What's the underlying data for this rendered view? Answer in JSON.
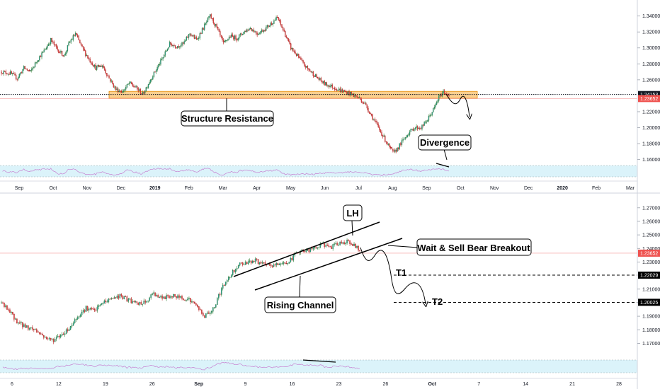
{
  "chart_data": [
    {
      "type": "candlestick",
      "title": "",
      "period": "daily",
      "x_ticks": [
        {
          "label": "Sep",
          "bold": false
        },
        {
          "label": "Oct",
          "bold": false
        },
        {
          "label": "Nov",
          "bold": false
        },
        {
          "label": "Dec",
          "bold": false
        },
        {
          "label": "2019",
          "bold": true
        },
        {
          "label": "Feb",
          "bold": false
        },
        {
          "label": "Mar",
          "bold": false
        },
        {
          "label": "Apr",
          "bold": false
        },
        {
          "label": "May",
          "bold": false
        },
        {
          "label": "Jun",
          "bold": false
        },
        {
          "label": "Jul",
          "bold": false
        },
        {
          "label": "Aug",
          "bold": false
        },
        {
          "label": "Sep",
          "bold": false
        },
        {
          "label": "Oct",
          "bold": false
        },
        {
          "label": "Nov",
          "bold": false
        },
        {
          "label": "Dec",
          "bold": false
        },
        {
          "label": "2020",
          "bold": true
        },
        {
          "label": "Feb",
          "bold": false
        },
        {
          "label": "Mar",
          "bold": false
        }
      ],
      "y_ticks": [
        "1.34000",
        "1.32000",
        "1.30000",
        "1.28000",
        "1.26000",
        "1.22000",
        "1.20000",
        "1.18000",
        "1.16000"
      ],
      "ylim": [
        1.157,
        1.345
      ],
      "price_key_points": [
        [
          0,
          1.27
        ],
        [
          8,
          1.268
        ],
        [
          14,
          1.262
        ],
        [
          20,
          1.275
        ],
        [
          26,
          1.27
        ],
        [
          32,
          1.285
        ],
        [
          38,
          1.296
        ],
        [
          44,
          1.31
        ],
        [
          50,
          1.298
        ],
        [
          56,
          1.29
        ],
        [
          60,
          1.305
        ],
        [
          66,
          1.318
        ],
        [
          72,
          1.3
        ],
        [
          78,
          1.286
        ],
        [
          84,
          1.275
        ],
        [
          90,
          1.278
        ],
        [
          96,
          1.262
        ],
        [
          102,
          1.248
        ],
        [
          108,
          1.245
        ],
        [
          114,
          1.256
        ],
        [
          120,
          1.25
        ],
        [
          126,
          1.242
        ],
        [
          132,
          1.258
        ],
        [
          138,
          1.273
        ],
        [
          144,
          1.288
        ],
        [
          150,
          1.305
        ],
        [
          156,
          1.302
        ],
        [
          162,
          1.305
        ],
        [
          168,
          1.318
        ],
        [
          174,
          1.31
        ],
        [
          180,
          1.325
        ],
        [
          186,
          1.34
        ],
        [
          192,
          1.325
        ],
        [
          198,
          1.305
        ],
        [
          204,
          1.315
        ],
        [
          210,
          1.312
        ],
        [
          216,
          1.32
        ],
        [
          222,
          1.325
        ],
        [
          228,
          1.318
        ],
        [
          234,
          1.323
        ],
        [
          240,
          1.33
        ],
        [
          246,
          1.338
        ],
        [
          252,
          1.32
        ],
        [
          258,
          1.3
        ],
        [
          264,
          1.29
        ],
        [
          270,
          1.278
        ],
        [
          276,
          1.27
        ],
        [
          282,
          1.262
        ],
        [
          288,
          1.255
        ],
        [
          294,
          1.252
        ],
        [
          300,
          1.248
        ],
        [
          306,
          1.245
        ],
        [
          312,
          1.242
        ],
        [
          318,
          1.238
        ],
        [
          324,
          1.23
        ],
        [
          330,
          1.215
        ],
        [
          336,
          1.2
        ],
        [
          340,
          1.19
        ],
        [
          346,
          1.175
        ],
        [
          350,
          1.168
        ],
        [
          356,
          1.18
        ],
        [
          362,
          1.192
        ],
        [
          368,
          1.2
        ],
        [
          374,
          1.2
        ],
        [
          380,
          1.21
        ],
        [
          386,
          1.225
        ],
        [
          390,
          1.238
        ],
        [
          394,
          1.245
        ],
        [
          399,
          1.2405
        ]
      ],
      "current_price": 1.23652,
      "levels": [
        {
          "label": "1.24153",
          "value": 1.24153,
          "color": "#131722",
          "style": "dotted"
        }
      ],
      "current_tag": "1.23652",
      "zone": {
        "low": 1.2368,
        "high": 1.2455,
        "color": "#f7a733"
      },
      "annotations": {
        "structure": "Structure Resistance",
        "divergence": "Divergence"
      },
      "rsi": {
        "upper": 70,
        "lower": 30
      }
    },
    {
      "type": "candlestick",
      "title": "",
      "period": "4h",
      "x_ticks": [
        {
          "label": "6",
          "bold": false
        },
        {
          "label": "12",
          "bold": false
        },
        {
          "label": "19",
          "bold": false
        },
        {
          "label": "26",
          "bold": false
        },
        {
          "label": "Sep",
          "bold": true
        },
        {
          "label": "9",
          "bold": false
        },
        {
          "label": "16",
          "bold": false
        },
        {
          "label": "23",
          "bold": false
        },
        {
          "label": "26",
          "bold": false
        },
        {
          "label": "Oct",
          "bold": true
        },
        {
          "label": "7",
          "bold": false
        },
        {
          "label": "14",
          "bold": false
        },
        {
          "label": "21",
          "bold": false
        },
        {
          "label": "28",
          "bold": false
        }
      ],
      "y_ticks": [
        "1.27000",
        "1.26000",
        "1.25000",
        "1.24000",
        "1.23000",
        "1.21000",
        "1.20000",
        "1.19000",
        "1.18000",
        "1.17000"
      ],
      "ylim": [
        1.165,
        1.2725
      ],
      "price_key_points": [
        [
          0,
          1.2
        ],
        [
          6,
          1.193
        ],
        [
          12,
          1.185
        ],
        [
          18,
          1.182
        ],
        [
          24,
          1.18
        ],
        [
          30,
          1.175
        ],
        [
          36,
          1.172
        ],
        [
          42,
          1.176
        ],
        [
          48,
          1.181
        ],
        [
          54,
          1.19
        ],
        [
          60,
          1.196
        ],
        [
          66,
          1.194
        ],
        [
          72,
          1.2
        ],
        [
          78,
          1.203
        ],
        [
          84,
          1.205
        ],
        [
          90,
          1.202
        ],
        [
          96,
          1.199
        ],
        [
          102,
          1.2
        ],
        [
          108,
          1.207
        ],
        [
          114,
          1.203
        ],
        [
          120,
          1.205
        ],
        [
          126,
          1.204
        ],
        [
          132,
          1.203
        ],
        [
          138,
          1.198
        ],
        [
          144,
          1.19
        ],
        [
          150,
          1.195
        ],
        [
          156,
          1.21
        ],
        [
          162,
          1.22
        ],
        [
          168,
          1.228
        ],
        [
          174,
          1.23
        ],
        [
          180,
          1.231
        ],
        [
          186,
          1.228
        ],
        [
          192,
          1.227
        ],
        [
          198,
          1.229
        ],
        [
          204,
          1.23
        ],
        [
          210,
          1.238
        ],
        [
          216,
          1.238
        ],
        [
          222,
          1.24
        ],
        [
          228,
          1.243
        ],
        [
          234,
          1.241
        ],
        [
          240,
          1.244
        ],
        [
          246,
          1.2455
        ],
        [
          250,
          1.242
        ],
        [
          254,
          1.2385
        ]
      ],
      "current_price": 1.23652,
      "levels": [
        {
          "label": "1.22029",
          "value": 1.22029,
          "color": "#000000",
          "style": "dashed"
        },
        {
          "label": "1.20025",
          "value": 1.20025,
          "color": "#000000",
          "style": "dashed"
        }
      ],
      "current_tag": "1.23652",
      "annotations": {
        "lh": "LH",
        "wait": "Wait & Sell Bear Breakout",
        "channel": "Rising Channel",
        "t1": "T1",
        "t2": "T2"
      },
      "rsi": {
        "upper": 70,
        "lower": 30
      }
    }
  ]
}
